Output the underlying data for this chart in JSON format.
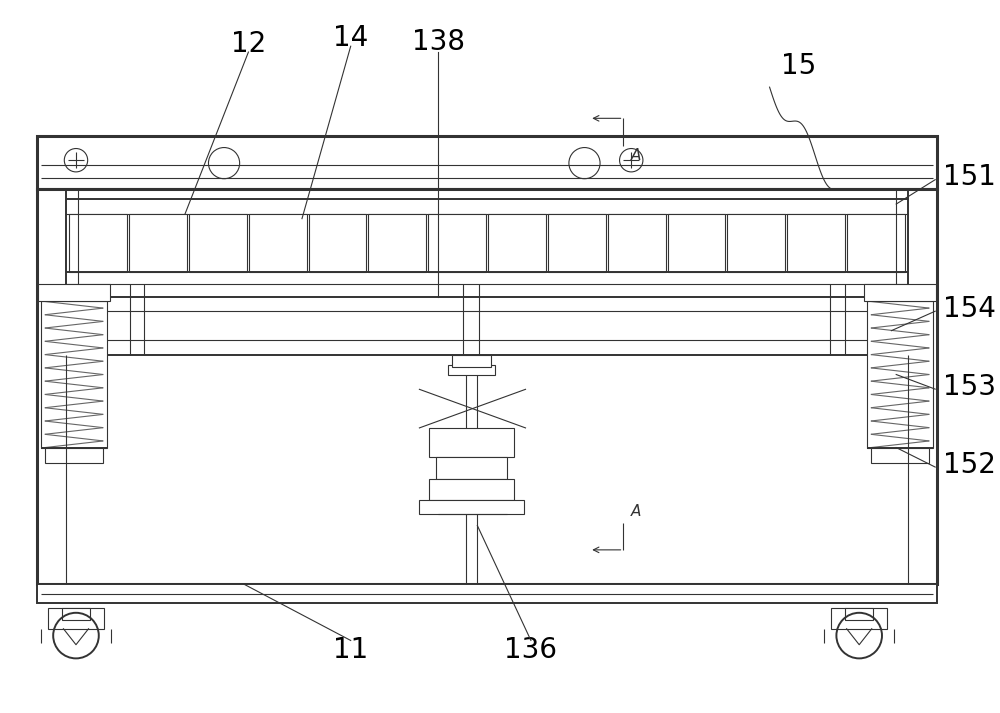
{
  "bg_color": "#ffffff",
  "line_color": "#333333",
  "line_color2": "#666666",
  "figsize": [
    10.0,
    7.13
  ],
  "dpi": 100,
  "lw_thick": 2.2,
  "lw_main": 1.4,
  "lw_thin": 0.8,
  "lw_hair": 0.5
}
